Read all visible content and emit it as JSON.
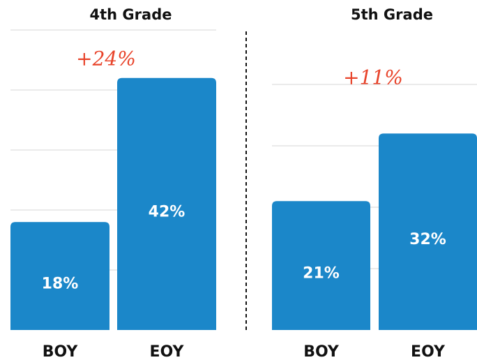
{
  "chart_data": [
    {
      "type": "bar",
      "title": "4th Grade",
      "categories": [
        "BOY",
        "EOY"
      ],
      "values": [
        18,
        42
      ],
      "value_labels": [
        "18%",
        "42%"
      ],
      "color": "#1b87c9",
      "ylim": [
        0,
        50
      ],
      "yticks": [
        10,
        20,
        30,
        40,
        50
      ],
      "grid": true,
      "annotation": "+24%"
    },
    {
      "type": "bar",
      "title": "5th Grade",
      "categories": [
        "BOY",
        "EOY"
      ],
      "values": [
        21,
        32
      ],
      "value_labels": [
        "21%",
        "32%"
      ],
      "color": "#1b87c9",
      "ylim": [
        0,
        40
      ],
      "yticks": [
        10,
        20,
        30,
        40
      ],
      "grid": true,
      "annotation": "+11%"
    }
  ]
}
